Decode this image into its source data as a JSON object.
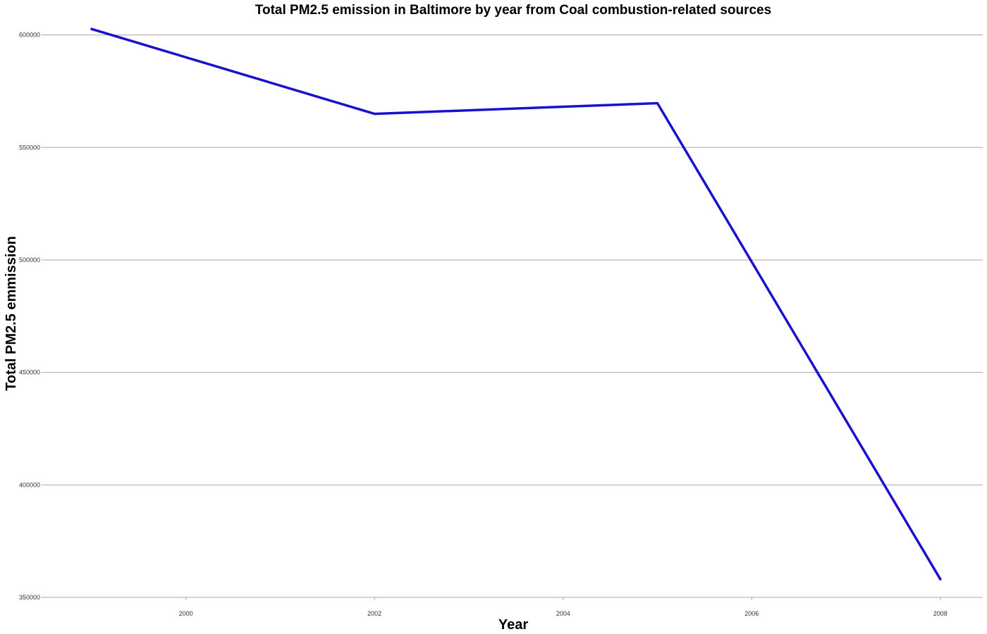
{
  "chart_data": {
    "type": "line",
    "title": "Total PM2.5 emission in Baltimore by year from Coal combustion-related sources",
    "xlabel": "Year",
    "ylabel": "Total PM2.5 emmission",
    "x": [
      1999,
      2002,
      2005,
      2008
    ],
    "series": [
      {
        "values": [
          602624,
          564940,
          569655,
          358084
        ],
        "color": "#1a10d0"
      }
    ],
    "xlim": [
      1998.5,
      2008.45
    ],
    "ylim": [
      350000,
      603000
    ],
    "x_ticks": [
      2000,
      2002,
      2004,
      2006,
      2008
    ],
    "x_tick_labels": [
      "2000",
      "2002",
      "2004",
      "2006",
      "2008"
    ],
    "y_ticks": [
      350000,
      400000,
      450000,
      500000,
      550000,
      600000
    ],
    "y_tick_labels": [
      "350000",
      "400000",
      "450000",
      "500000",
      "550000",
      "600000"
    ],
    "grid": "horizontal",
    "legend": "none"
  }
}
